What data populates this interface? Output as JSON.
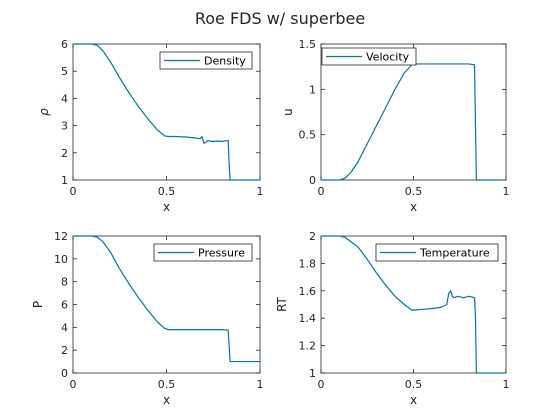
{
  "figure": {
    "title": "Roe FDS w/ superbee"
  },
  "colors": {
    "line": "#0072BD",
    "axes": "#262626"
  },
  "chart_data": [
    {
      "type": "line",
      "xlabel": "x",
      "ylabel": "ρ",
      "xlim": [
        0,
        1
      ],
      "ylim": [
        1,
        6
      ],
      "xticks": [
        0,
        0.5,
        1
      ],
      "yticks": [
        1,
        2,
        3,
        4,
        5,
        6
      ],
      "xtick_labels": [
        "0",
        "0.5",
        "1"
      ],
      "ytick_labels": [
        "1",
        "2",
        "3",
        "4",
        "5",
        "6"
      ],
      "legend": "top-right",
      "series": [
        {
          "name": "Density",
          "x": [
            0,
            0.1,
            0.13,
            0.16,
            0.2,
            0.25,
            0.3,
            0.35,
            0.4,
            0.45,
            0.49,
            0.51,
            0.55,
            0.6,
            0.65,
            0.68,
            0.69,
            0.7,
            0.71,
            0.72,
            0.74,
            0.77,
            0.8,
            0.83,
            0.835,
            0.84,
            0.85,
            1
          ],
          "y": [
            6,
            6,
            5.95,
            5.75,
            5.35,
            4.75,
            4.2,
            3.7,
            3.25,
            2.85,
            2.62,
            2.6,
            2.6,
            2.58,
            2.55,
            2.52,
            2.6,
            2.35,
            2.38,
            2.45,
            2.42,
            2.43,
            2.42,
            2.45,
            1.6,
            1,
            1,
            1
          ]
        }
      ]
    },
    {
      "type": "line",
      "xlabel": "x",
      "ylabel": "u",
      "xlim": [
        0,
        1
      ],
      "ylim": [
        0,
        1.5
      ],
      "xticks": [
        0,
        0.5,
        1
      ],
      "yticks": [
        0,
        0.5,
        1,
        1.5
      ],
      "xtick_labels": [
        "0",
        "0.5",
        "1"
      ],
      "ytick_labels": [
        "0",
        "0.5",
        "1",
        "1.5"
      ],
      "legend": "top-left",
      "series": [
        {
          "name": "Velocity",
          "x": [
            0,
            0.1,
            0.13,
            0.16,
            0.2,
            0.25,
            0.3,
            0.35,
            0.4,
            0.45,
            0.49,
            0.51,
            0.6,
            0.7,
            0.8,
            0.83,
            0.835,
            0.84,
            0.85,
            1
          ],
          "y": [
            0,
            0,
            0.02,
            0.08,
            0.2,
            0.4,
            0.6,
            0.8,
            1.0,
            1.18,
            1.27,
            1.28,
            1.28,
            1.28,
            1.28,
            1.27,
            0.6,
            0,
            0,
            0
          ]
        }
      ]
    },
    {
      "type": "line",
      "xlabel": "x",
      "ylabel": "P",
      "xlim": [
        0,
        1
      ],
      "ylim": [
        0,
        12
      ],
      "xticks": [
        0,
        0.5,
        1
      ],
      "yticks": [
        0,
        2,
        4,
        6,
        8,
        10,
        12
      ],
      "xtick_labels": [
        "0",
        "0.5",
        "1"
      ],
      "ytick_labels": [
        "0",
        "2",
        "4",
        "6",
        "8",
        "10",
        "12"
      ],
      "legend": "top-right",
      "series": [
        {
          "name": "Pressure",
          "x": [
            0,
            0.1,
            0.13,
            0.16,
            0.2,
            0.25,
            0.3,
            0.35,
            0.4,
            0.45,
            0.49,
            0.51,
            0.6,
            0.7,
            0.8,
            0.83,
            0.835,
            0.84,
            0.85,
            1
          ],
          "y": [
            12,
            12,
            11.9,
            11.5,
            10.6,
            9.1,
            7.8,
            6.6,
            5.5,
            4.5,
            3.9,
            3.8,
            3.8,
            3.8,
            3.8,
            3.75,
            2.4,
            1,
            1,
            1
          ]
        }
      ]
    },
    {
      "type": "line",
      "xlabel": "x",
      "ylabel": "RT",
      "xlim": [
        0,
        1
      ],
      "ylim": [
        1,
        2
      ],
      "xticks": [
        0,
        0.5,
        1
      ],
      "yticks": [
        1,
        1.2,
        1.4,
        1.6,
        1.8,
        2
      ],
      "xtick_labels": [
        "0",
        "0.5",
        "1"
      ],
      "ytick_labels": [
        "1",
        "1.2",
        "1.4",
        "1.6",
        "1.8",
        "2"
      ],
      "legend": "top-right",
      "series": [
        {
          "name": "Temperature",
          "x": [
            0,
            0.1,
            0.13,
            0.16,
            0.2,
            0.25,
            0.3,
            0.35,
            0.4,
            0.45,
            0.49,
            0.51,
            0.55,
            0.6,
            0.65,
            0.68,
            0.69,
            0.7,
            0.71,
            0.72,
            0.74,
            0.77,
            0.8,
            0.83,
            0.835,
            0.84,
            0.85,
            1
          ],
          "y": [
            2,
            2,
            1.99,
            1.96,
            1.92,
            1.83,
            1.73,
            1.64,
            1.56,
            1.5,
            1.46,
            1.46,
            1.465,
            1.47,
            1.48,
            1.5,
            1.58,
            1.6,
            1.56,
            1.55,
            1.56,
            1.55,
            1.56,
            1.55,
            1.4,
            1,
            1,
            1
          ]
        }
      ]
    }
  ]
}
